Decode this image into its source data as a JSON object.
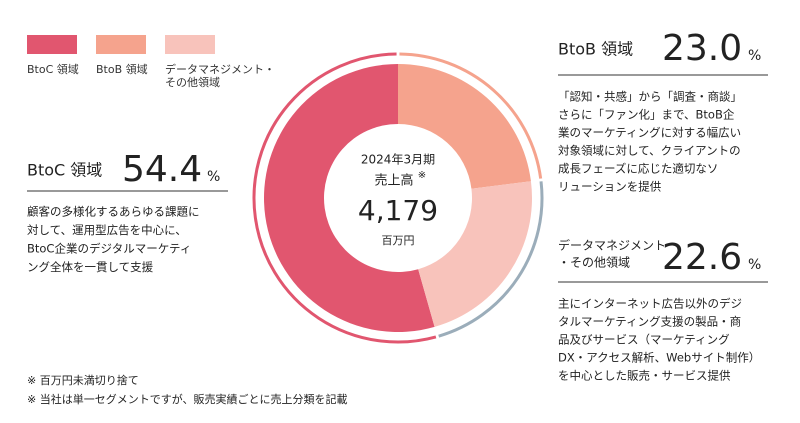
{
  "chart_data": {
    "type": "pie",
    "categories": [
      "BtoC 領域",
      "BtoB 領域",
      "データマネジメント・その他領域"
    ],
    "values": [
      54.4,
      23.0,
      22.6
    ],
    "value_labels": [
      "54.4",
      "23.0",
      "22.6"
    ],
    "unit": "%",
    "colors": [
      "#e1566f",
      "#f5a38d",
      "#f8c3bb"
    ],
    "ring_colors": [
      "#e1566f",
      "#f5a38d",
      "#9badba"
    ],
    "headings": [
      [
        "BtoC 領域"
      ],
      [
        "BtoB 領域"
      ],
      [
        "データマネジメント",
        "・その他領域"
      ]
    ],
    "descriptions": [
      [
        "顧客の多様化するあらゆる課題に",
        "対して、運用型広告を中心に、",
        "BtoC企業のデジタルマーケティ",
        "ング全体を一貫して支援"
      ],
      [
        "「認知・共感」から「調査・商談」",
        "さらに「ファン化」まで、BtoB企",
        "業のマーケティングに対する幅広い",
        "対象領域に対して、クライアントの",
        "成長フェーズに応じた適切なソ",
        "リューションを提供"
      ],
      [
        "主にインターネット広告以外のデジ",
        "タルマーケティング支援の製品・商",
        "品及びサービス（マーケティング",
        "DX・アクセス解析、Webサイト制作）",
        "を中心とした販売・サービス提供"
      ]
    ],
    "center": {
      "period": "2024年3月期",
      "label": "売上高",
      "mark": "※",
      "total": "4,179",
      "unit": "百万円"
    },
    "footnotes": [
      "※ 百万円未満切り捨て",
      "※ 当社は単一セグメントですが、販売実績ごとに売上分類を記載"
    ]
  }
}
